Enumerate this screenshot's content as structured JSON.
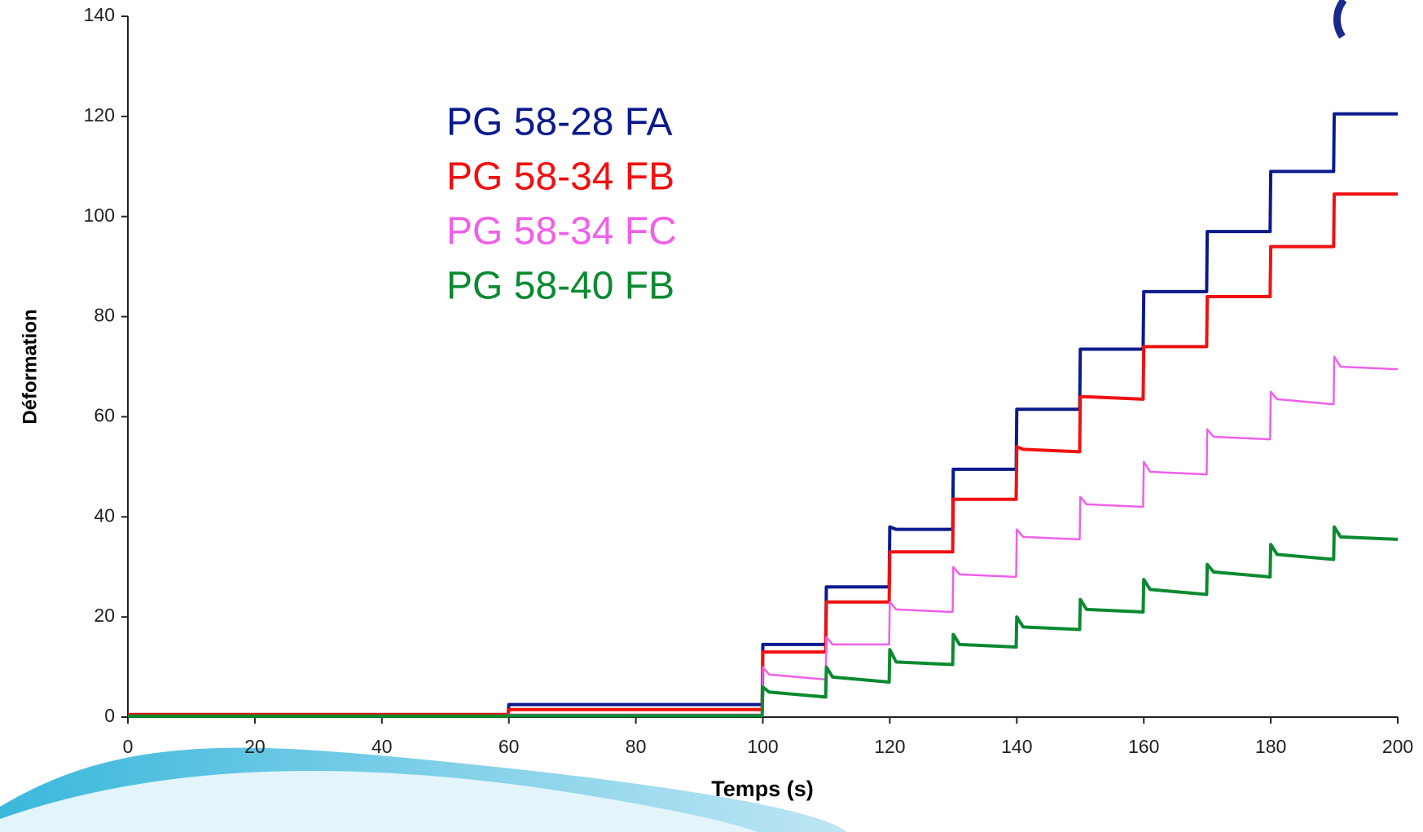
{
  "chart_data": {
    "type": "line",
    "xlabel": "Temps (s)",
    "ylabel": "Déformation",
    "x": [
      0,
      59.9,
      60,
      99.9,
      100,
      101,
      109.9,
      110,
      111,
      119.9,
      120,
      121,
      129.9,
      130,
      131,
      139.9,
      140,
      141,
      149.9,
      150,
      151,
      159.9,
      160,
      161,
      169.9,
      170,
      171,
      179.9,
      180,
      181,
      189.9,
      190,
      191,
      200
    ],
    "series": [
      {
        "name": "PG 58-28 FA",
        "color": "#0a1a8c",
        "width": 4,
        "values": [
          0.5,
          0.5,
          2.5,
          2.5,
          14.5,
          14.5,
          14.5,
          26,
          26,
          26,
          38,
          37.5,
          37.5,
          49.5,
          49.5,
          49.5,
          61.5,
          61.5,
          61.5,
          73.5,
          73.5,
          73.5,
          85,
          85,
          85,
          97,
          97,
          97,
          109,
          109,
          109,
          120.5,
          120.5,
          120.5
        ]
      },
      {
        "name": "PG 58-34 FB",
        "color": "#f01010",
        "width": 4,
        "values": [
          0.5,
          0.5,
          1.5,
          1.5,
          13,
          13,
          13,
          23,
          23,
          23,
          33,
          33,
          33,
          43.5,
          43.5,
          43.5,
          54,
          53.5,
          53,
          64,
          64,
          63.5,
          74,
          74,
          74,
          84,
          84,
          84,
          94,
          94,
          94,
          104.5,
          104.5,
          104.5
        ]
      },
      {
        "name": "PG 58-34 FC",
        "color": "#f060e8",
        "width": 2.5,
        "values": [
          0.3,
          0.3,
          0.5,
          0.5,
          10,
          8.5,
          7.5,
          16,
          14.5,
          14.5,
          23,
          21.5,
          21,
          30,
          28.5,
          28,
          37.5,
          36,
          35.5,
          44,
          42.5,
          42,
          51,
          49,
          48.5,
          57.5,
          56,
          55.5,
          65,
          63.5,
          62.5,
          72,
          70,
          69.5
        ]
      },
      {
        "name": "PG 58-40 FB",
        "color": "#0a8a30",
        "width": 4,
        "values": [
          0.2,
          0.2,
          0.3,
          0.3,
          6,
          5,
          4,
          10,
          8,
          7,
          13.5,
          11,
          10.5,
          16.5,
          14.5,
          14,
          20,
          18,
          17.5,
          23.5,
          21.5,
          21,
          27.5,
          25.5,
          24.5,
          30.5,
          29,
          28,
          34.5,
          32.5,
          31.5,
          38,
          36,
          35.5
        ]
      }
    ],
    "xlim": [
      0,
      200
    ],
    "xticks": [
      0,
      20,
      40,
      60,
      80,
      100,
      120,
      140,
      160,
      180,
      200
    ],
    "ylim": [
      0,
      140
    ],
    "yticks": [
      0,
      20,
      40,
      60,
      80,
      100,
      120,
      140
    ]
  }
}
